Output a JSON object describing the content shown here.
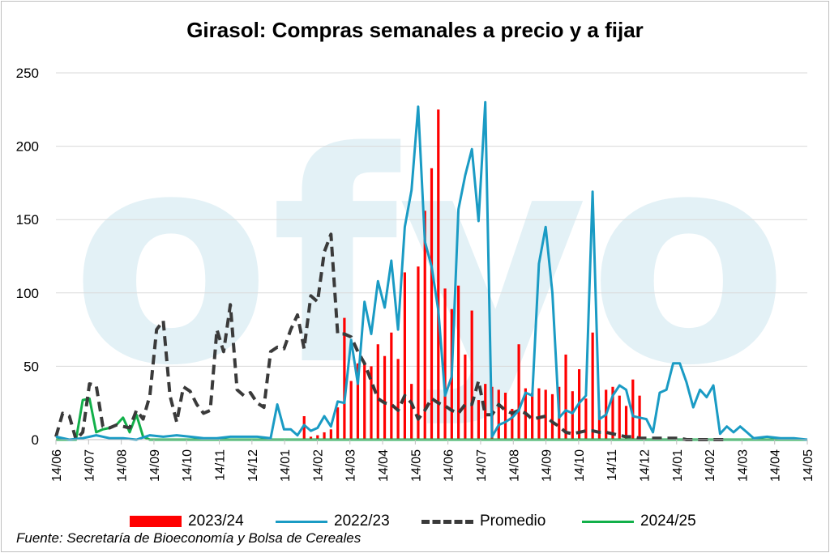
{
  "page": {
    "title": "Girasol: Compras semanales a precio y a fijar",
    "source": "Fuente: Secretaría de Bioeconomía y Bolsa de Cereales"
  },
  "chart_data": {
    "type": "bar",
    "title": "Girasol: Compras semanales a precio y a fijar",
    "xlabel": "",
    "ylabel": "",
    "ylim": [
      0,
      250
    ],
    "yticks": [
      0,
      50,
      100,
      150,
      200,
      250
    ],
    "x_start": "14/06",
    "x_end": "14/05",
    "x_tick_labels": [
      "14/06",
      "14/07",
      "14/08",
      "14/09",
      "14/10",
      "14/11",
      "14/12",
      "14/01",
      "14/02",
      "14/03",
      "14/04",
      "14/05",
      "14/06",
      "14/07",
      "14/08",
      "14/09",
      "14/10",
      "14/11",
      "14/12",
      "14/01",
      "14/02",
      "14/03",
      "14/04",
      "14/05"
    ],
    "grid": "horizontal",
    "legend_position": "bottom",
    "watermark": "ofyo",
    "series": [
      {
        "name": "2023/24",
        "kind": "bar",
        "color": "#ff0000",
        "x_weeks": [
          37,
          38,
          39,
          40,
          41,
          42,
          43,
          44,
          45,
          46,
          47,
          48,
          49,
          50,
          51,
          52,
          53,
          54,
          55,
          56,
          57,
          58,
          59,
          60,
          61,
          62,
          63,
          64,
          65,
          66,
          67,
          68,
          69,
          70,
          71,
          72,
          73,
          74,
          75,
          76,
          77,
          78,
          79,
          80,
          81,
          82,
          83,
          84,
          85,
          86,
          87
        ],
        "values": [
          16,
          2,
          3,
          5,
          7,
          22,
          83,
          40,
          52,
          52,
          50,
          65,
          57,
          73,
          55,
          114,
          38,
          118,
          156,
          185,
          225,
          103,
          89,
          105,
          58,
          88,
          27,
          38,
          36,
          34,
          32,
          21,
          65,
          35,
          32,
          35,
          34,
          31,
          36,
          58,
          33,
          48,
          28,
          73,
          20,
          34,
          36,
          30,
          23,
          41,
          30
        ]
      },
      {
        "name": "2022/23",
        "kind": "line",
        "color": "#1a9bc4",
        "points": [
          [
            0,
            2
          ],
          [
            2,
            0
          ],
          [
            4,
            1
          ],
          [
            6,
            3
          ],
          [
            8,
            1
          ],
          [
            10,
            1
          ],
          [
            12,
            0
          ],
          [
            14,
            3
          ],
          [
            16,
            2
          ],
          [
            18,
            3
          ],
          [
            20,
            2
          ],
          [
            22,
            1
          ],
          [
            24,
            1
          ],
          [
            26,
            2
          ],
          [
            28,
            2
          ],
          [
            30,
            2
          ],
          [
            32,
            1
          ],
          [
            33,
            24
          ],
          [
            34,
            7
          ],
          [
            35,
            7
          ],
          [
            36,
            3
          ],
          [
            37,
            10
          ],
          [
            38,
            6
          ],
          [
            39,
            8
          ],
          [
            40,
            16
          ],
          [
            41,
            9
          ],
          [
            42,
            26
          ],
          [
            43,
            25
          ],
          [
            44,
            68
          ],
          [
            45,
            38
          ],
          [
            46,
            94
          ],
          [
            47,
            72
          ],
          [
            48,
            108
          ],
          [
            49,
            90
          ],
          [
            50,
            122
          ],
          [
            51,
            75
          ],
          [
            52,
            145
          ],
          [
            53,
            170
          ],
          [
            54,
            227
          ],
          [
            55,
            135
          ],
          [
            56,
            118
          ],
          [
            57,
            88
          ],
          [
            58,
            30
          ],
          [
            59,
            43
          ],
          [
            60,
            157
          ],
          [
            61,
            180
          ],
          [
            62,
            198
          ],
          [
            63,
            149
          ],
          [
            64,
            230
          ],
          [
            65,
            2
          ],
          [
            66,
            10
          ],
          [
            67,
            12
          ],
          [
            68,
            15
          ],
          [
            69,
            20
          ],
          [
            70,
            32
          ],
          [
            71,
            30
          ],
          [
            72,
            120
          ],
          [
            73,
            145
          ],
          [
            74,
            100
          ],
          [
            75,
            15
          ],
          [
            76,
            20
          ],
          [
            77,
            18
          ],
          [
            78,
            25
          ],
          [
            79,
            30
          ],
          [
            80,
            169
          ],
          [
            81,
            14
          ],
          [
            82,
            17
          ],
          [
            83,
            30
          ],
          [
            84,
            37
          ],
          [
            85,
            34
          ],
          [
            86,
            16
          ],
          [
            87,
            15
          ],
          [
            88,
            14
          ],
          [
            89,
            5
          ],
          [
            90,
            32
          ],
          [
            91,
            34
          ],
          [
            92,
            52
          ],
          [
            93,
            52
          ],
          [
            94,
            39
          ],
          [
            95,
            22
          ],
          [
            96,
            34
          ],
          [
            97,
            29
          ],
          [
            98,
            37
          ],
          [
            99,
            4
          ],
          [
            100,
            9
          ],
          [
            101,
            5
          ],
          [
            102,
            9
          ],
          [
            103,
            5
          ],
          [
            104,
            1
          ],
          [
            106,
            2
          ],
          [
            108,
            1
          ],
          [
            110,
            1
          ],
          [
            112,
            0
          ]
        ]
      },
      {
        "name": "Promedio",
        "kind": "line",
        "dash": true,
        "color": "#3a3a3a",
        "points": [
          [
            0,
            2
          ],
          [
            1,
            18
          ],
          [
            2,
            16
          ],
          [
            3,
            0
          ],
          [
            4,
            5
          ],
          [
            5,
            38
          ],
          [
            6,
            37
          ],
          [
            7,
            9
          ],
          [
            8,
            8
          ],
          [
            9,
            10
          ],
          [
            10,
            9
          ],
          [
            11,
            8
          ],
          [
            12,
            20
          ],
          [
            13,
            14
          ],
          [
            14,
            30
          ],
          [
            15,
            75
          ],
          [
            16,
            81
          ],
          [
            17,
            30
          ],
          [
            18,
            12
          ],
          [
            19,
            36
          ],
          [
            20,
            33
          ],
          [
            21,
            24
          ],
          [
            22,
            18
          ],
          [
            23,
            20
          ],
          [
            24,
            75
          ],
          [
            25,
            60
          ],
          [
            26,
            92
          ],
          [
            27,
            34
          ],
          [
            28,
            30
          ],
          [
            29,
            32
          ],
          [
            30,
            25
          ],
          [
            31,
            22
          ],
          [
            32,
            60
          ],
          [
            33,
            63
          ],
          [
            34,
            62
          ],
          [
            35,
            75
          ],
          [
            36,
            85
          ],
          [
            37,
            62
          ],
          [
            38,
            98
          ],
          [
            39,
            94
          ],
          [
            40,
            128
          ],
          [
            41,
            140
          ],
          [
            42,
            72
          ],
          [
            43,
            72
          ],
          [
            44,
            70
          ],
          [
            45,
            60
          ],
          [
            46,
            52
          ],
          [
            47,
            40
          ],
          [
            48,
            28
          ],
          [
            49,
            25
          ],
          [
            50,
            24
          ],
          [
            51,
            20
          ],
          [
            52,
            30
          ],
          [
            53,
            25
          ],
          [
            54,
            14
          ],
          [
            55,
            20
          ],
          [
            56,
            28
          ],
          [
            57,
            25
          ],
          [
            58,
            23
          ],
          [
            59,
            20
          ],
          [
            60,
            18
          ],
          [
            61,
            24
          ],
          [
            62,
            24
          ],
          [
            63,
            40
          ],
          [
            64,
            17
          ],
          [
            65,
            17
          ],
          [
            66,
            24
          ],
          [
            67,
            20
          ],
          [
            68,
            18
          ],
          [
            69,
            20
          ],
          [
            70,
            18
          ],
          [
            71,
            14
          ],
          [
            72,
            15
          ],
          [
            73,
            16
          ],
          [
            74,
            12
          ],
          [
            75,
            9
          ],
          [
            76,
            5
          ],
          [
            77,
            4
          ],
          [
            78,
            5
          ],
          [
            79,
            6
          ],
          [
            80,
            6
          ],
          [
            81,
            5
          ],
          [
            82,
            5
          ],
          [
            83,
            4
          ],
          [
            84,
            3
          ],
          [
            85,
            2
          ],
          [
            86,
            2
          ],
          [
            87,
            1
          ],
          [
            88,
            1
          ],
          [
            89,
            1
          ],
          [
            90,
            1
          ],
          [
            91,
            1
          ],
          [
            92,
            1
          ],
          [
            93,
            1
          ],
          [
            94,
            0
          ],
          [
            95,
            0
          ],
          [
            96,
            0
          ],
          [
            97,
            0
          ],
          [
            98,
            0
          ],
          [
            99,
            0
          ],
          [
            100,
            0
          ]
        ]
      },
      {
        "name": "2024/25",
        "kind": "line",
        "color": "#12b04a",
        "points": [
          [
            0,
            0
          ],
          [
            2,
            0
          ],
          [
            3,
            0
          ],
          [
            4,
            27
          ],
          [
            5,
            28
          ],
          [
            6,
            5
          ],
          [
            7,
            7
          ],
          [
            8,
            8
          ],
          [
            9,
            10
          ],
          [
            10,
            15
          ],
          [
            11,
            5
          ],
          [
            12,
            17
          ],
          [
            13,
            2
          ],
          [
            14,
            0
          ],
          [
            112,
            0
          ]
        ]
      }
    ]
  }
}
